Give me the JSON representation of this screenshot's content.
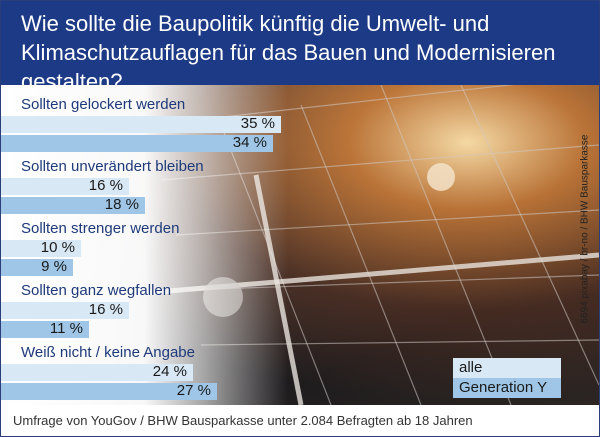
{
  "title": "Wie sollte die Baupolitik künftig die Umwelt- und Klimaschutzauflagen für das Bauen und Modernisieren gestalten?",
  "legend": {
    "all": "alle",
    "gen": "Generation Y"
  },
  "colors": {
    "header": "#1d3a86",
    "all": "#d9e8f5",
    "gen": "#9fc6e6",
    "label": "#1e3a7a"
  },
  "chart_data": {
    "type": "bar",
    "orientation": "horizontal",
    "title": "Wie sollte die Baupolitik künftig die Umwelt- und Klimaschutzauflagen für das Bauen und Modernisieren gestalten?",
    "categories": [
      "Sollten gelockert werden",
      "Sollten unverändert bleiben",
      "Sollten strenger werden",
      "Sollten ganz wegfallen",
      "Weiß nicht / keine Angabe"
    ],
    "series": [
      {
        "name": "alle",
        "values": [
          35,
          16,
          10,
          16,
          24
        ],
        "labels": [
          "35 %",
          "16 %",
          "10 %",
          "16 %",
          "24 %"
        ]
      },
      {
        "name": "Generation Y",
        "values": [
          34,
          18,
          9,
          11,
          27
        ],
        "labels": [
          "34 %",
          "18 %",
          "9 %",
          "11 %",
          "27 %"
        ]
      }
    ],
    "unit": "%",
    "xlim": [
      0,
      100
    ]
  },
  "photo_credit": "6694 pixabay / br-no / BHW Bausparkasse",
  "source": "Umfrage von YouGov / BHW Bausparkasse unter 2.084 Befragten ab 18 Jahren"
}
